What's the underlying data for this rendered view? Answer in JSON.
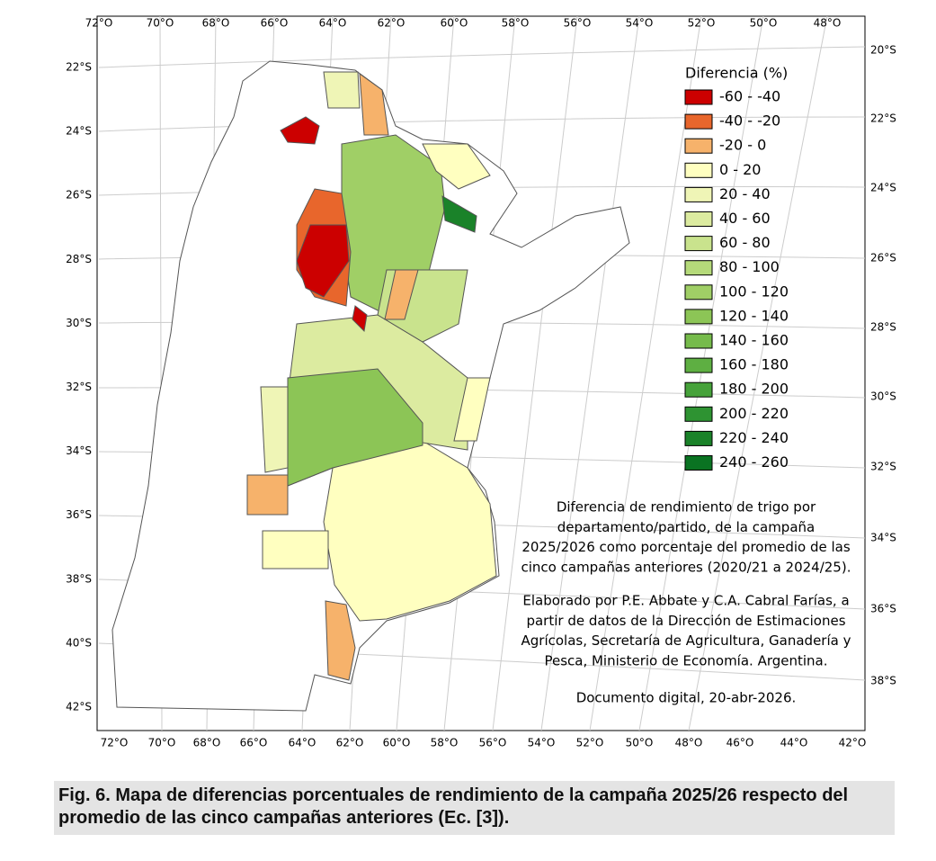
{
  "map": {
    "top_labels": [
      "72°O",
      "70°O",
      "68°O",
      "66°O",
      "64°O",
      "62°O",
      "60°O",
      "58°O",
      "56°O",
      "54°O",
      "52°O",
      "50°O",
      "48°O"
    ],
    "bottom_labels": [
      "72°O",
      "70°O",
      "68°O",
      "66°O",
      "64°O",
      "62°O",
      "60°O",
      "58°O",
      "56°O",
      "54°O",
      "52°O",
      "50°O",
      "48°O",
      "46°O",
      "44°O",
      "42°O"
    ],
    "left_labels": [
      "22°S",
      "24°S",
      "26°S",
      "28°S",
      "30°S",
      "32°S",
      "34°S",
      "36°S",
      "38°S",
      "40°S",
      "42°S"
    ],
    "right_labels": [
      "20°S",
      "22°S",
      "24°S",
      "26°S",
      "28°S",
      "30°S",
      "32°S",
      "34°S",
      "36°S",
      "38°S"
    ],
    "legend": {
      "title": "Diferencia (%)",
      "items": [
        {
          "name": "-60 - -40",
          "color": "#cc0000"
        },
        {
          "name": "-40 - -20",
          "color": "#e8662c"
        },
        {
          "name": "-20 - 0",
          "color": "#f6b26b"
        },
        {
          "name": "0 - 20",
          "color": "#ffffc0"
        },
        {
          "name": "20 - 40",
          "color": "#eff5b6"
        },
        {
          "name": "40 - 60",
          "color": "#dceba0"
        },
        {
          "name": "60 - 80",
          "color": "#c9e38d"
        },
        {
          "name": "80 - 100",
          "color": "#b5da7a"
        },
        {
          "name": "100 - 120",
          "color": "#a0cf66"
        },
        {
          "name": "120 - 140",
          "color": "#8cc556"
        },
        {
          "name": "140 - 160",
          "color": "#76bb4b"
        },
        {
          "name": "160 - 180",
          "color": "#5eaf42"
        },
        {
          "name": "180 - 200",
          "color": "#46a23a"
        },
        {
          "name": "200 - 220",
          "color": "#2e9332"
        },
        {
          "name": "220 - 240",
          "color": "#1a8229"
        },
        {
          "name": "240 - 260",
          "color": "#0a7322"
        }
      ]
    },
    "description": [
      "Diferencia de rendimiento de trigo por",
      "departamento/partido, de la campaña",
      "2025/2026 como porcentaje del promedio de las",
      "cinco campañas anteriores (2020/21 a 2024/25)."
    ],
    "credits": [
      "Elaborado por P.E. Abbate y C.A. Cabral Farías, a",
      "partir de datos de la Dirección de Estimaciones",
      "Agrícolas, Secretaría de Agricultura, Ganadería y",
      "Pesca, Ministerio de Economía. Argentina."
    ],
    "date_note": "Documento digital, 20-abr-2026."
  },
  "caption": "Fig. 6. Mapa de diferencias porcentuales de rendimiento de la campaña 2025/26 respecto del promedio de las cinco campañas anteriores (Ec. [3])."
}
